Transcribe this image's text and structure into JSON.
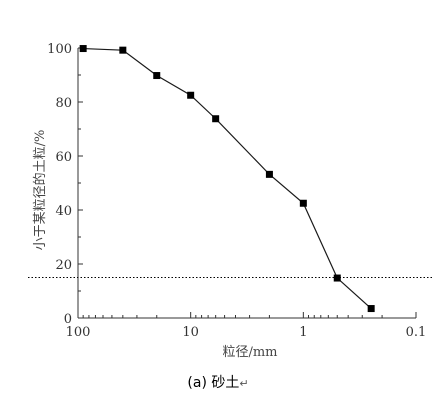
{
  "chart_data": {
    "type": "scatter",
    "title": "",
    "xlabel": "粒径/mm",
    "ylabel": "小于某粒径的土粒/%",
    "x_scale": "log",
    "x_reversed": true,
    "xlim": [
      100,
      0.1
    ],
    "ylim": [
      0,
      100
    ],
    "x_ticks": [
      "100",
      "10",
      "1",
      "0.1"
    ],
    "y_ticks": [
      "0",
      "20",
      "40",
      "60",
      "80",
      "100"
    ],
    "grid": false,
    "legend": "none",
    "reference_line_y": 15,
    "series": [
      {
        "x": [
          90,
          40,
          20,
          10,
          6,
          2,
          1,
          0.5,
          0.25
        ],
        "y": [
          99.8,
          99.2,
          89.8,
          82.5,
          73.8,
          53.2,
          42.5,
          14.8,
          3.5
        ]
      }
    ]
  },
  "caption": "(a) 砂土",
  "caption_return_mark": "↵",
  "colors": {
    "line": "#1a1a1a",
    "axis": "#333333",
    "marker": "#000000"
  }
}
